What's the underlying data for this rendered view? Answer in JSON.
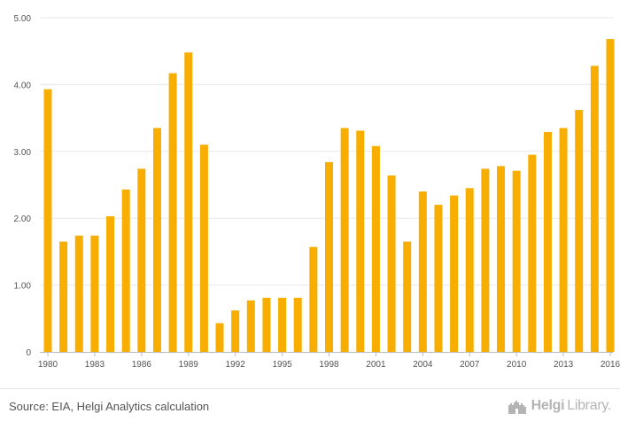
{
  "chart_data": {
    "type": "bar",
    "title": "",
    "xlabel": "",
    "ylabel": "",
    "ylim": [
      0,
      5
    ],
    "yticks": [
      0,
      1,
      2,
      3,
      4,
      5
    ],
    "ytick_labels": [
      "0",
      "1.00",
      "2.00",
      "3.00",
      "4.00",
      "5.00"
    ],
    "xtick_labels": [
      "1980",
      "1983",
      "1986",
      "1989",
      "1992",
      "1995",
      "1998",
      "2001",
      "2004",
      "2007",
      "2010",
      "2013",
      "2016"
    ],
    "grid": true,
    "categories": [
      1980,
      1981,
      1982,
      1983,
      1984,
      1985,
      1986,
      1987,
      1988,
      1989,
      1990,
      1991,
      1992,
      1993,
      1994,
      1995,
      1996,
      1997,
      1998,
      1999,
      2000,
      2001,
      2002,
      2003,
      2004,
      2005,
      2006,
      2007,
      2008,
      2009,
      2010,
      2011,
      2012,
      2013,
      2014,
      2015,
      2016
    ],
    "values": [
      3.93,
      1.65,
      1.74,
      1.74,
      2.03,
      2.43,
      2.74,
      3.35,
      4.17,
      4.48,
      3.1,
      0.43,
      0.62,
      0.77,
      0.81,
      0.81,
      0.81,
      1.57,
      2.84,
      3.35,
      3.31,
      3.08,
      2.64,
      1.65,
      2.4,
      2.2,
      2.34,
      2.45,
      2.74,
      2.78,
      2.71,
      2.95,
      3.29,
      3.35,
      3.62,
      4.28,
      4.68
    ],
    "bar_color": "#f7ae00"
  },
  "footer": {
    "source": "Source: EIA, Helgi Analytics calculation",
    "brand_bold": "Helgi",
    "brand_light": "Library."
  },
  "colors": {
    "bar": "#f7ae00",
    "grid": "#e8e8e8",
    "axis": "#bbbbbb",
    "text": "#555555"
  }
}
